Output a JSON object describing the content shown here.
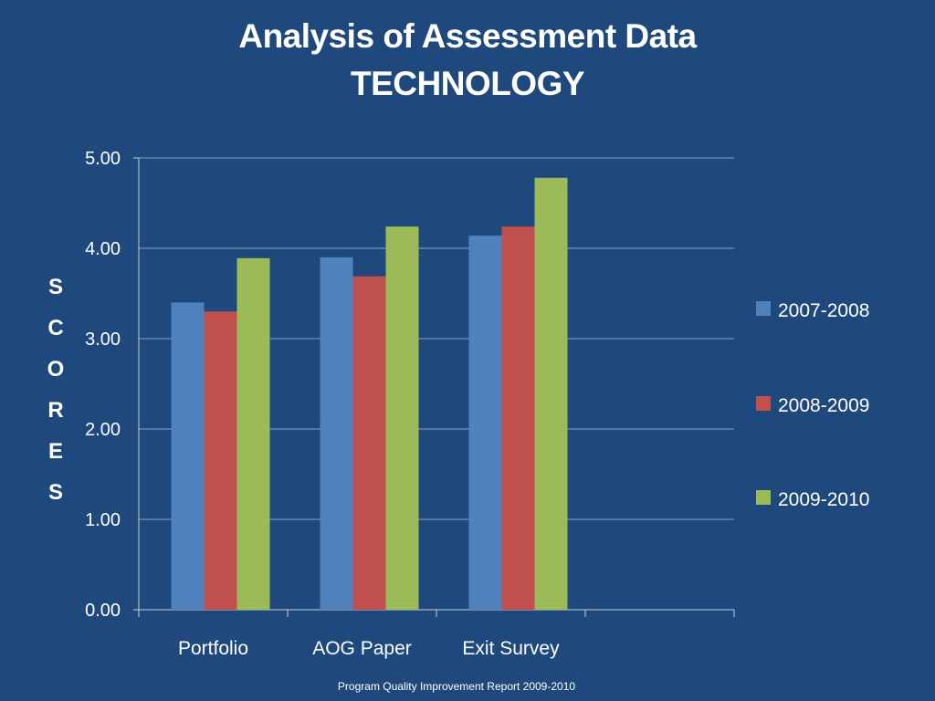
{
  "title": {
    "line1": "Analysis of Assessment Data",
    "line2": "TECHNOLOGY"
  },
  "ylabel_letters": [
    "S",
    "C",
    "O",
    "R",
    "E",
    "S"
  ],
  "footer": "Program Quality Improvement Report  2009-2010",
  "colors": {
    "background": "#1f497d",
    "gridline": "#8ea2bd",
    "axis": "#c5cfdd"
  },
  "chart_data": {
    "type": "bar",
    "title": "Analysis of Assessment Data TECHNOLOGY",
    "xlabel": "",
    "ylabel": "SCORES",
    "categories": [
      "Portfolio",
      "AOG Paper",
      "Exit Survey",
      ""
    ],
    "series": [
      {
        "name": "2007-2008",
        "color": "#4f81bd",
        "values": [
          3.4,
          3.9,
          4.14,
          null
        ]
      },
      {
        "name": "2008-2009",
        "color": "#c0504d",
        "values": [
          3.3,
          3.69,
          4.24,
          null
        ]
      },
      {
        "name": "2009-2010",
        "color": "#9bbb59",
        "values": [
          3.89,
          4.24,
          4.78,
          null
        ]
      }
    ],
    "ylim": [
      0,
      5
    ],
    "yticks": [
      "0.00",
      "1.00",
      "2.00",
      "3.00",
      "4.00",
      "5.00"
    ],
    "grid": true,
    "legend": "right"
  }
}
